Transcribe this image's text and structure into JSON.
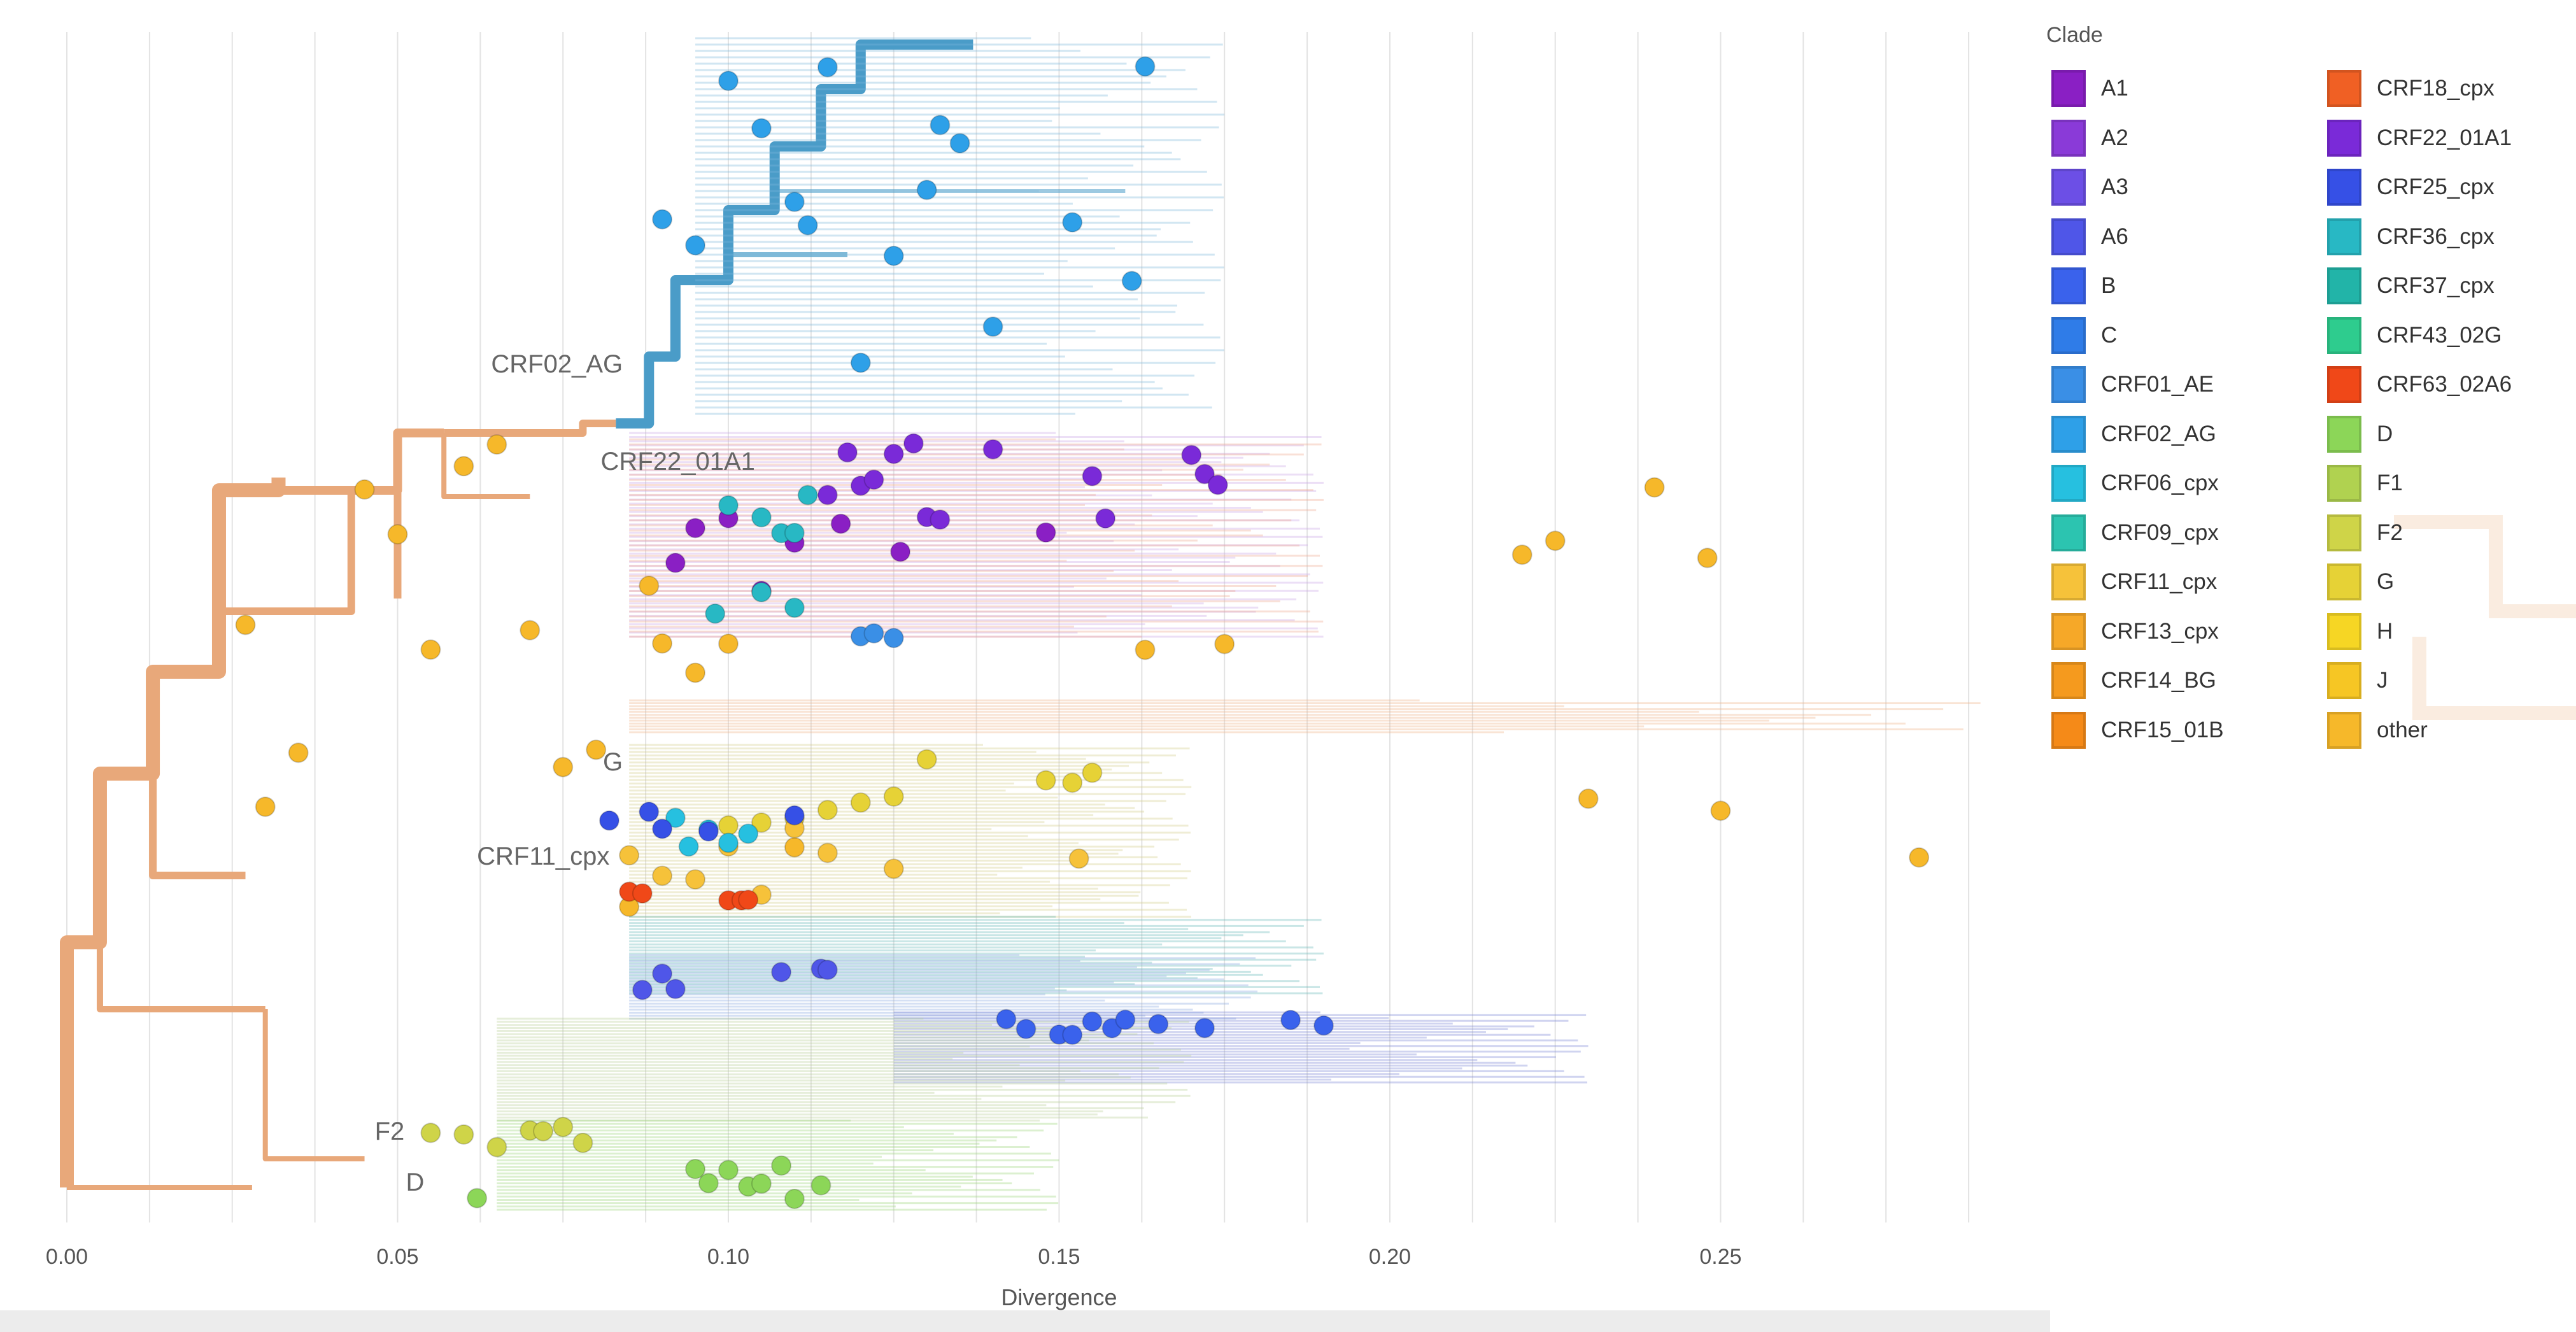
{
  "chart_data": {
    "type": "phylogenetic-tree",
    "xlabel": "Divergence",
    "xlim": [
      0.0,
      0.295
    ],
    "x_ticks": [
      0.0,
      0.05,
      0.1,
      0.15,
      0.2,
      0.25
    ],
    "x_tick_labels": [
      "0.00",
      "0.05",
      "0.10",
      "0.15",
      "0.20",
      "0.25"
    ],
    "grid": true,
    "legend_position": "right",
    "clade_annotations": [
      {
        "label": "CRF02_AG",
        "divergence": 0.085,
        "clade": "CRF02_AG"
      },
      {
        "label": "CRF22_01A1",
        "divergence": 0.105,
        "clade": "CRF22_01A1"
      },
      {
        "label": "G",
        "divergence": 0.085,
        "clade": "G"
      },
      {
        "label": "CRF11_cpx",
        "divergence": 0.083,
        "clade": "CRF11_cpx"
      },
      {
        "label": "F2",
        "divergence": 0.052,
        "clade": "F2"
      },
      {
        "label": "D",
        "divergence": 0.055,
        "clade": "D"
      }
    ],
    "tips": [
      {
        "clade": "CRF02_AG",
        "divergence": [
          0.09,
          0.095,
          0.1,
          0.105,
          0.11,
          0.112,
          0.115,
          0.12,
          0.125,
          0.13,
          0.135,
          0.14,
          0.161,
          0.163,
          0.152,
          0.132
        ]
      },
      {
        "clade": "CRF22_01A1",
        "divergence": [
          0.115,
          0.118,
          0.12,
          0.122,
          0.125,
          0.128,
          0.13,
          0.132,
          0.14,
          0.155,
          0.157,
          0.17,
          0.172,
          0.174
        ]
      },
      {
        "clade": "A1",
        "divergence": [
          0.092,
          0.095,
          0.1,
          0.105,
          0.11,
          0.117,
          0.126,
          0.148
        ]
      },
      {
        "clade": "CRF36_cpx",
        "divergence": [
          0.1,
          0.105,
          0.108,
          0.11,
          0.112,
          0.098,
          0.105,
          0.11
        ]
      },
      {
        "clade": "CRF01_AE",
        "divergence": [
          0.12,
          0.122,
          0.125
        ]
      },
      {
        "clade": "other",
        "divergence": [
          0.027,
          0.03,
          0.035,
          0.045,
          0.05,
          0.055,
          0.06,
          0.065,
          0.07,
          0.075,
          0.08,
          0.085,
          0.088,
          0.09,
          0.095,
          0.1,
          0.11,
          0.163,
          0.175,
          0.22,
          0.225,
          0.23,
          0.24,
          0.248,
          0.25,
          0.28
        ]
      },
      {
        "clade": "G",
        "divergence": [
          0.1,
          0.105,
          0.11,
          0.115,
          0.12,
          0.125,
          0.13,
          0.148,
          0.152,
          0.155
        ]
      },
      {
        "clade": "CRF11_cpx",
        "divergence": [
          0.085,
          0.09,
          0.095,
          0.1,
          0.105,
          0.11,
          0.115,
          0.125,
          0.153
        ]
      },
      {
        "clade": "CRF06_cpx",
        "divergence": [
          0.092,
          0.094,
          0.097,
          0.1,
          0.103
        ]
      },
      {
        "clade": "CRF25_cpx",
        "divergence": [
          0.082,
          0.088,
          0.09,
          0.097,
          0.11
        ]
      },
      {
        "clade": "CRF63_02A6",
        "divergence": [
          0.085,
          0.087,
          0.1,
          0.102,
          0.103
        ]
      },
      {
        "clade": "A6",
        "divergence": [
          0.087,
          0.09,
          0.092,
          0.108,
          0.114,
          0.115
        ]
      },
      {
        "clade": "B",
        "divergence": [
          0.142,
          0.145,
          0.15,
          0.152,
          0.155,
          0.158,
          0.16,
          0.165,
          0.172,
          0.185,
          0.19
        ]
      },
      {
        "clade": "F2",
        "divergence": [
          0.055,
          0.06,
          0.065,
          0.07,
          0.072,
          0.075,
          0.078
        ]
      },
      {
        "clade": "D",
        "divergence": [
          0.095,
          0.097,
          0.1,
          0.103,
          0.105,
          0.108,
          0.11,
          0.114,
          0.062
        ]
      }
    ]
  },
  "legend": {
    "title": "Clade",
    "column1": [
      {
        "label": "A1",
        "color": "#8a1fc4"
      },
      {
        "label": "A2",
        "color": "#8a3ad8"
      },
      {
        "label": "A3",
        "color": "#6c4fe6"
      },
      {
        "label": "A6",
        "color": "#4f56e8"
      },
      {
        "label": "B",
        "color": "#3a62ec"
      },
      {
        "label": "C",
        "color": "#2f7ce8"
      },
      {
        "label": "CRF01_AE",
        "color": "#3a8fe6"
      },
      {
        "label": "CRF02_AG",
        "color": "#2ea0e8"
      },
      {
        "label": "CRF06_cpx",
        "color": "#26c0e0"
      },
      {
        "label": "CRF09_cpx",
        "color": "#2cc4b0"
      },
      {
        "label": "CRF11_cpx",
        "color": "#f6c23a"
      },
      {
        "label": "CRF13_cpx",
        "color": "#f6a828"
      },
      {
        "label": "CRF14_BG",
        "color": "#f59a1e"
      },
      {
        "label": "CRF15_01B",
        "color": "#f58a18"
      }
    ],
    "column2": [
      {
        "label": "CRF18_cpx",
        "color": "#f06024"
      },
      {
        "label": "CRF22_01A1",
        "color": "#7a2ad8"
      },
      {
        "label": "CRF25_cpx",
        "color": "#3650e6"
      },
      {
        "label": "CRF36_cpx",
        "color": "#28b8c4"
      },
      {
        "label": "CRF37_cpx",
        "color": "#22b4a8"
      },
      {
        "label": "CRF43_02G",
        "color": "#2ecc8e"
      },
      {
        "label": "CRF63_02A6",
        "color": "#f04818"
      },
      {
        "label": "D",
        "color": "#8cd658"
      },
      {
        "label": "F1",
        "color": "#b0d250"
      },
      {
        "label": "F2",
        "color": "#cfd448"
      },
      {
        "label": "G",
        "color": "#e6d236"
      },
      {
        "label": "H",
        "color": "#f6d624"
      },
      {
        "label": "J",
        "color": "#f6c624"
      },
      {
        "label": "other",
        "color": "#f6b82a"
      }
    ]
  },
  "colors": {
    "trunk": "#e8a87a",
    "crf02_branch": "#4a9cc8",
    "grid": "#e3e3e3"
  }
}
